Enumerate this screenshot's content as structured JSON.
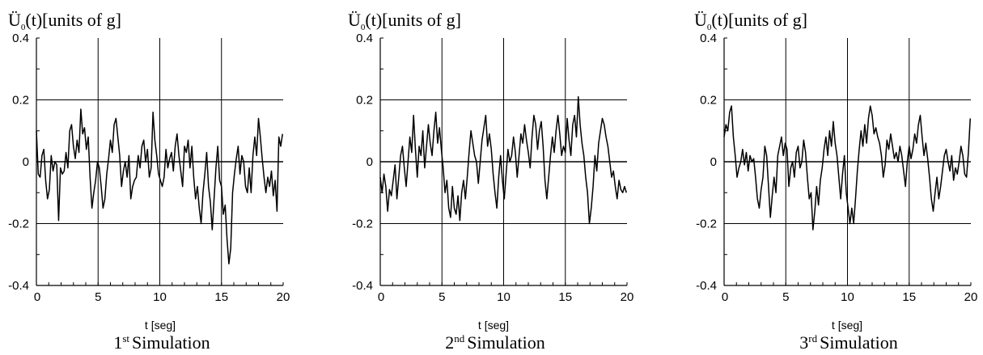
{
  "chart_data": [
    {
      "type": "line",
      "ylabel": "Ü0(t)[units of g]",
      "ylabel_parts": {
        "symbol": "Ü",
        "subscript": "0",
        "arg": "(t)",
        "units": "[units of g]"
      },
      "xlabel": "t [seg]",
      "caption": {
        "number": "1",
        "suffix": "st",
        "text": "Simulation"
      },
      "xlim": [
        0,
        20
      ],
      "ylim": [
        -0.4,
        0.4
      ],
      "x_ticks": [
        "0",
        "5",
        "10",
        "15",
        "20"
      ],
      "y_ticks": [
        "-0.4",
        "-0.2",
        "0",
        "0.2",
        "0.4"
      ],
      "grid": true,
      "series": [
        {
          "x": [
            0,
            0.15,
            0.3,
            0.45,
            0.6,
            0.75,
            0.9,
            1.05,
            1.2,
            1.35,
            1.5,
            1.65,
            1.8,
            1.95,
            2.1,
            2.25,
            2.4,
            2.55,
            2.7,
            2.85,
            3.0,
            3.15,
            3.3,
            3.45,
            3.6,
            3.75,
            3.9,
            4.05,
            4.2,
            4.35,
            4.5,
            4.65,
            4.8,
            4.95,
            5.1,
            5.25,
            5.4,
            5.55,
            5.7,
            5.85,
            6.0,
            6.15,
            6.3,
            6.45,
            6.6,
            6.75,
            6.9,
            7.05,
            7.2,
            7.35,
            7.5,
            7.65,
            7.8,
            7.95,
            8.1,
            8.25,
            8.4,
            8.55,
            8.7,
            8.85,
            9.0,
            9.15,
            9.3,
            9.45,
            9.6,
            9.75,
            9.9,
            10.05,
            10.2,
            10.35,
            10.5,
            10.65,
            10.8,
            10.95,
            11.1,
            11.25,
            11.4,
            11.55,
            11.7,
            11.85,
            12.0,
            12.15,
            12.3,
            12.45,
            12.6,
            12.75,
            12.9,
            13.05,
            13.2,
            13.35,
            13.5,
            13.65,
            13.8,
            13.95,
            14.1,
            14.25,
            14.4,
            14.55,
            14.7,
            14.85,
            15.0,
            15.15,
            15.3,
            15.45,
            15.6,
            15.75,
            15.9,
            16.05,
            16.2,
            16.35,
            16.5,
            16.65,
            16.8,
            16.95,
            17.1,
            17.25,
            17.4,
            17.55,
            17.7,
            17.85,
            18.0,
            18.15,
            18.3,
            18.45,
            18.6,
            18.75,
            18.9,
            19.05,
            19.2,
            19.35,
            19.5,
            19.65,
            19.8,
            19.95
          ],
          "y": [
            0.1,
            -0.04,
            -0.05,
            0.02,
            0.04,
            -0.06,
            -0.12,
            -0.09,
            0.02,
            -0.03,
            0.0,
            -0.01,
            -0.19,
            -0.02,
            -0.04,
            -0.03,
            0.03,
            -0.02,
            0.1,
            0.12,
            0.05,
            0.01,
            0.07,
            0.03,
            0.17,
            0.09,
            0.11,
            0.04,
            0.08,
            -0.05,
            -0.15,
            -0.1,
            -0.06,
            0.0,
            -0.02,
            -0.08,
            -0.15,
            -0.12,
            -0.04,
            0.01,
            0.07,
            0.03,
            0.12,
            0.14,
            0.08,
            0.02,
            -0.08,
            -0.03,
            0.0,
            -0.05,
            0.02,
            -0.12,
            -0.08,
            -0.06,
            -0.05,
            0.02,
            -0.02,
            0.05,
            0.07,
            0.0,
            0.04,
            -0.05,
            -0.02,
            0.16,
            0.07,
            0.02,
            -0.04,
            -0.06,
            -0.08,
            -0.05,
            0.04,
            -0.02,
            0.01,
            0.03,
            -0.03,
            0.05,
            0.09,
            0.02,
            -0.03,
            -0.08,
            0.05,
            0.03,
            0.07,
            -0.02,
            0.05,
            -0.05,
            -0.12,
            -0.08,
            -0.15,
            -0.2,
            -0.1,
            -0.04,
            0.03,
            -0.08,
            -0.13,
            -0.22,
            -0.12,
            -0.02,
            0.05,
            -0.06,
            -0.08,
            -0.17,
            -0.14,
            -0.25,
            -0.33,
            -0.28,
            -0.1,
            -0.04,
            0.01,
            0.05,
            -0.04,
            0.02,
            0.0,
            -0.08,
            -0.1,
            -0.02,
            -0.1,
            0.02,
            0.08,
            0.02,
            0.14,
            0.08,
            0.01,
            -0.05,
            -0.1,
            -0.05,
            -0.08,
            -0.03,
            -0.11,
            -0.06,
            -0.16,
            0.08,
            0.05,
            0.09
          ]
        }
      ]
    },
    {
      "type": "line",
      "ylabel": "Ü0(t)[units of g]",
      "ylabel_parts": {
        "symbol": "Ü",
        "subscript": "0",
        "arg": "(t)",
        "units": "[units of g]"
      },
      "xlabel": "t [seg]",
      "caption": {
        "number": "2",
        "suffix": "nd",
        "text": "Simulation"
      },
      "xlim": [
        0,
        20
      ],
      "ylim": [
        -0.4,
        0.4
      ],
      "x_ticks": [
        "0",
        "5",
        "10",
        "15",
        "20"
      ],
      "y_ticks": [
        "-0.4",
        "-0.2",
        "0",
        "0.2",
        "0.4"
      ],
      "grid": true,
      "series": [
        {
          "x": [
            0,
            0.15,
            0.3,
            0.45,
            0.6,
            0.75,
            0.9,
            1.05,
            1.2,
            1.35,
            1.5,
            1.65,
            1.8,
            1.95,
            2.1,
            2.25,
            2.4,
            2.55,
            2.7,
            2.85,
            3.0,
            3.15,
            3.3,
            3.45,
            3.6,
            3.75,
            3.9,
            4.05,
            4.2,
            4.35,
            4.5,
            4.65,
            4.8,
            4.95,
            5.1,
            5.25,
            5.4,
            5.55,
            5.7,
            5.85,
            6.0,
            6.15,
            6.3,
            6.45,
            6.6,
            6.75,
            6.9,
            7.05,
            7.2,
            7.35,
            7.5,
            7.65,
            7.8,
            7.95,
            8.1,
            8.25,
            8.4,
            8.55,
            8.7,
            8.85,
            9.0,
            9.15,
            9.3,
            9.45,
            9.6,
            9.75,
            9.9,
            10.05,
            10.2,
            10.35,
            10.5,
            10.65,
            10.8,
            10.95,
            11.1,
            11.25,
            11.4,
            11.55,
            11.7,
            11.85,
            12.0,
            12.15,
            12.3,
            12.45,
            12.6,
            12.75,
            12.9,
            13.05,
            13.2,
            13.35,
            13.5,
            13.65,
            13.8,
            13.95,
            14.1,
            14.25,
            14.4,
            14.55,
            14.7,
            14.85,
            15.0,
            15.15,
            15.3,
            15.45,
            15.6,
            15.75,
            15.9,
            16.05,
            16.2,
            16.35,
            16.5,
            16.65,
            16.8,
            16.95,
            17.1,
            17.25,
            17.4,
            17.55,
            17.7,
            17.85,
            18.0,
            18.15,
            18.3,
            18.45,
            18.6,
            18.75,
            18.9,
            19.05,
            19.2,
            19.35,
            19.5,
            19.65,
            19.8,
            19.95
          ],
          "y": [
            -0.05,
            -0.1,
            -0.04,
            -0.08,
            -0.16,
            -0.09,
            -0.11,
            -0.06,
            -0.01,
            -0.12,
            -0.05,
            0.02,
            0.05,
            -0.02,
            -0.08,
            0.0,
            0.08,
            0.03,
            0.15,
            0.04,
            -0.05,
            0.05,
            0.02,
            0.1,
            -0.02,
            0.05,
            0.12,
            0.06,
            0.02,
            0.1,
            0.16,
            0.06,
            0.11,
            0.04,
            -0.02,
            -0.1,
            -0.06,
            -0.15,
            -0.18,
            -0.08,
            -0.15,
            -0.17,
            -0.11,
            -0.19,
            -0.1,
            -0.06,
            -0.12,
            -0.05,
            0.03,
            0.1,
            0.06,
            0.02,
            0.0,
            -0.07,
            0.0,
            0.07,
            0.11,
            0.15,
            0.05,
            0.09,
            0.04,
            -0.04,
            -0.1,
            -0.15,
            -0.05,
            0.02,
            -0.06,
            -0.12,
            -0.04,
            0.04,
            0.0,
            0.02,
            0.08,
            0.03,
            -0.05,
            0.02,
            0.09,
            0.06,
            0.12,
            0.07,
            0.03,
            -0.02,
            0.08,
            0.15,
            0.12,
            0.04,
            0.1,
            0.13,
            0.05,
            -0.06,
            -0.12,
            -0.05,
            0.02,
            0.08,
            0.03,
            0.1,
            0.15,
            0.09,
            0.02,
            0.05,
            0.03,
            0.14,
            0.07,
            0.02,
            0.12,
            0.15,
            0.08,
            0.21,
            0.12,
            0.06,
            0.02,
            -0.05,
            -0.1,
            -0.2,
            -0.15,
            -0.08,
            0.02,
            -0.03,
            0.06,
            0.1,
            0.14,
            0.12,
            0.08,
            0.05,
            0.0,
            -0.05,
            -0.03,
            -0.08,
            -0.12,
            -0.06,
            -0.09,
            -0.1,
            -0.08,
            -0.1
          ]
        }
      ]
    },
    {
      "type": "line",
      "ylabel": "Ü0(t)[units of g]",
      "ylabel_parts": {
        "symbol": "Ü",
        "subscript": "0",
        "arg": "(t)",
        "units": "[units of g]"
      },
      "xlabel": "t [seg]",
      "caption": {
        "number": "3",
        "suffix": "rd",
        "text": "Simulation"
      },
      "xlim": [
        0,
        20
      ],
      "ylim": [
        -0.4,
        0.4
      ],
      "x_ticks": [
        "0",
        "5",
        "10",
        "15",
        "20"
      ],
      "y_ticks": [
        "-0.4",
        "-0.2",
        "0",
        "0.2",
        "0.4"
      ],
      "grid": true,
      "series": [
        {
          "x": [
            0,
            0.15,
            0.3,
            0.45,
            0.6,
            0.75,
            0.9,
            1.05,
            1.2,
            1.35,
            1.5,
            1.65,
            1.8,
            1.95,
            2.1,
            2.25,
            2.4,
            2.55,
            2.7,
            2.85,
            3.0,
            3.15,
            3.3,
            3.45,
            3.6,
            3.75,
            3.9,
            4.05,
            4.2,
            4.35,
            4.5,
            4.65,
            4.8,
            4.95,
            5.1,
            5.25,
            5.4,
            5.55,
            5.7,
            5.85,
            6.0,
            6.15,
            6.3,
            6.45,
            6.6,
            6.75,
            6.9,
            7.05,
            7.2,
            7.35,
            7.5,
            7.65,
            7.8,
            7.95,
            8.1,
            8.25,
            8.4,
            8.55,
            8.7,
            8.85,
            9.0,
            9.15,
            9.3,
            9.45,
            9.6,
            9.75,
            9.9,
            10.05,
            10.2,
            10.35,
            10.5,
            10.65,
            10.8,
            10.95,
            11.1,
            11.25,
            11.4,
            11.55,
            11.7,
            11.85,
            12.0,
            12.15,
            12.3,
            12.45,
            12.6,
            12.75,
            12.9,
            13.05,
            13.2,
            13.35,
            13.5,
            13.65,
            13.8,
            13.95,
            14.1,
            14.25,
            14.4,
            14.55,
            14.7,
            14.85,
            15.0,
            15.15,
            15.3,
            15.45,
            15.6,
            15.75,
            15.9,
            16.05,
            16.2,
            16.35,
            16.5,
            16.65,
            16.8,
            16.95,
            17.1,
            17.25,
            17.4,
            17.55,
            17.7,
            17.85,
            18.0,
            18.15,
            18.3,
            18.45,
            18.6,
            18.75,
            18.9,
            19.05,
            19.2,
            19.35,
            19.5,
            19.65,
            19.8,
            19.95
          ],
          "y": [
            0.08,
            0.12,
            0.1,
            0.16,
            0.18,
            0.08,
            0.02,
            -0.05,
            -0.02,
            0.0,
            0.04,
            -0.01,
            0.03,
            -0.03,
            0.02,
            0.0,
            0.01,
            -0.05,
            -0.12,
            -0.15,
            -0.09,
            -0.05,
            0.05,
            0.02,
            -0.08,
            -0.18,
            -0.11,
            -0.05,
            -0.1,
            0.02,
            0.05,
            0.08,
            0.02,
            0.06,
            0.04,
            -0.08,
            -0.02,
            0.0,
            -0.05,
            0.03,
            0.05,
            -0.02,
            0.0,
            0.07,
            0.03,
            -0.05,
            -0.12,
            -0.1,
            -0.22,
            -0.16,
            -0.08,
            -0.14,
            -0.06,
            -0.02,
            0.04,
            0.08,
            0.02,
            0.1,
            0.05,
            0.13,
            0.06,
            0.02,
            -0.05,
            -0.12,
            -0.04,
            0.02,
            -0.1,
            -0.15,
            -0.2,
            -0.15,
            -0.2,
            -0.12,
            -0.03,
            0.04,
            0.1,
            0.05,
            0.12,
            0.06,
            0.14,
            0.18,
            0.15,
            0.09,
            0.11,
            0.08,
            0.06,
            0.02,
            -0.05,
            -0.01,
            0.07,
            0.04,
            0.09,
            0.05,
            0.01,
            0.03,
            0.0,
            0.05,
            0.02,
            -0.03,
            -0.08,
            0.0,
            0.05,
            0.01,
            0.04,
            0.09,
            0.06,
            0.12,
            0.15,
            0.08,
            0.02,
            0.06,
            0.01,
            -0.05,
            -0.12,
            -0.16,
            -0.1,
            -0.05,
            -0.12,
            -0.08,
            -0.03,
            0.02,
            0.04,
            0.0,
            -0.03,
            0.02,
            -0.06,
            -0.02,
            -0.04,
            0.0,
            0.05,
            0.02,
            -0.04,
            -0.05,
            0.03,
            0.14
          ]
        }
      ]
    }
  ]
}
